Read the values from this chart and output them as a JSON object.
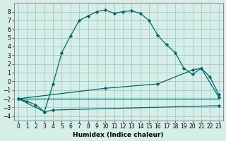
{
  "xlabel": "Humidex (Indice chaleur)",
  "background_color": "#d6eee8",
  "grid_color": "#aacccc",
  "line_color": "#006666",
  "xlim": [
    -0.5,
    23.5
  ],
  "ylim": [
    -4.5,
    9.0
  ],
  "xticks": [
    0,
    1,
    2,
    3,
    4,
    5,
    6,
    7,
    8,
    9,
    10,
    11,
    12,
    13,
    14,
    15,
    16,
    17,
    18,
    19,
    20,
    21,
    22,
    23
  ],
  "yticks": [
    -4,
    -3,
    -2,
    -1,
    0,
    1,
    2,
    3,
    4,
    5,
    6,
    7,
    8
  ],
  "curve1_x": [
    0,
    1,
    2,
    3,
    4,
    5,
    6,
    7,
    8,
    9,
    10,
    11,
    12,
    13,
    14,
    15,
    16,
    17,
    18,
    19,
    20,
    21,
    22,
    23
  ],
  "curve1_y": [
    -2.0,
    -2.3,
    -2.7,
    -3.5,
    -0.3,
    3.3,
    5.2,
    7.0,
    7.5,
    8.0,
    8.2,
    7.8,
    8.0,
    8.1,
    7.8,
    7.0,
    5.3,
    4.2,
    3.3,
    1.5,
    0.8,
    1.5,
    0.5,
    -1.5
  ],
  "curve2_x": [
    0,
    23
  ],
  "curve2_y": [
    -2.0,
    -2.0
  ],
  "curve3_x": [
    0,
    10,
    16,
    20,
    21,
    23
  ],
  "curve3_y": [
    -2.0,
    -0.8,
    -0.3,
    1.3,
    1.5,
    -1.8
  ],
  "curve4_x": [
    0,
    3,
    4,
    23
  ],
  "curve4_y": [
    -2.0,
    -3.5,
    -3.3,
    -2.8
  ]
}
